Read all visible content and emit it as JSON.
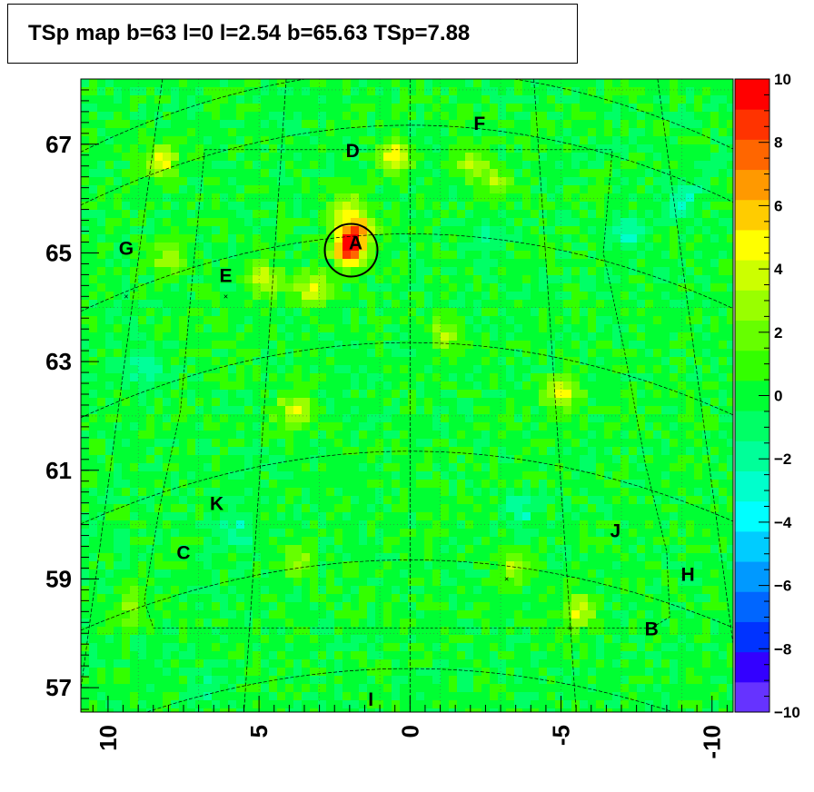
{
  "chart_data": {
    "type": "heatmap",
    "title": "TSp map b=63 l=0 l=2.54 b=65.63 TSp=7.88",
    "x_ticks": [
      "10",
      "5",
      "0",
      "-5",
      "-10"
    ],
    "x_tick_values": [
      10,
      5,
      0,
      -5,
      -10
    ],
    "xlim": [
      10.9,
      -10.7
    ],
    "y_ticks": [
      "67",
      "65",
      "63",
      "61",
      "59",
      "57"
    ],
    "y_tick_values": [
      67,
      65,
      63,
      61,
      59,
      57
    ],
    "ylim": [
      56.55,
      68.2
    ],
    "colorbar": {
      "ticks": [
        "10",
        "8",
        "6",
        "4",
        "2",
        "0",
        "−2",
        "−4",
        "−6",
        "−8",
        "−10"
      ],
      "range": [
        -10,
        10
      ],
      "colors": [
        "#6633ff",
        "#3300ff",
        "#0033ff",
        "#0066ff",
        "#0099ff",
        "#00ccff",
        "#00ffff",
        "#00ffcc",
        "#00ff99",
        "#00ff66",
        "#00ff33",
        "#33ff00",
        "#66ff00",
        "#99ff00",
        "#ccff00",
        "#ffff00",
        "#ffcc00",
        "#ff9900",
        "#ff6600",
        "#ff3300",
        "#ff0000"
      ]
    },
    "background_color": "#00ff33",
    "sources": [
      {
        "label": "A",
        "l": 1.8,
        "b": 65.2
      },
      {
        "label": "B",
        "l": -8.0,
        "b": 58.1
      },
      {
        "label": "C",
        "l": 7.5,
        "b": 59.5
      },
      {
        "label": "D",
        "l": 1.9,
        "b": 66.9
      },
      {
        "label": "E",
        "l": 6.1,
        "b": 64.6
      },
      {
        "label": "F",
        "l": -2.3,
        "b": 67.4
      },
      {
        "label": "G",
        "l": 9.4,
        "b": 65.1
      },
      {
        "label": "H",
        "l": -9.2,
        "b": 59.1
      },
      {
        "label": "I",
        "l": 1.3,
        "b": 56.8
      },
      {
        "label": "J",
        "l": -6.8,
        "b": 59.9
      },
      {
        "label": "K",
        "l": 6.4,
        "b": 60.4
      }
    ],
    "highlights": [
      {
        "l": 2.0,
        "b": 65.05,
        "v": 7.88
      },
      {
        "l": 1.8,
        "b": 65.4,
        "v": 6
      },
      {
        "l": 2.1,
        "b": 65.8,
        "v": 3.5
      },
      {
        "l": 3.2,
        "b": 64.3,
        "v": 4.5
      },
      {
        "l": 4.8,
        "b": 64.5,
        "v": 4.5
      },
      {
        "l": 8.2,
        "b": 66.7,
        "v": 4
      },
      {
        "l": 0.5,
        "b": 66.8,
        "v": 4.5
      },
      {
        "l": -2.0,
        "b": 66.7,
        "v": 3
      },
      {
        "l": -2.8,
        "b": 66.3,
        "v": 3
      },
      {
        "l": 3.8,
        "b": 62.1,
        "v": 4.5
      },
      {
        "l": -1.2,
        "b": 63.5,
        "v": 3
      },
      {
        "l": -5.0,
        "b": 62.4,
        "v": 4.5
      },
      {
        "l": -5.6,
        "b": 58.4,
        "v": 4
      },
      {
        "l": -3.4,
        "b": 59.2,
        "v": 3
      },
      {
        "l": 9.2,
        "b": 58.5,
        "v": 2.5
      },
      {
        "l": 3.8,
        "b": 59.3,
        "v": 2.5
      },
      {
        "l": 8.0,
        "b": 64.9,
        "v": 3
      },
      {
        "l": -7.2,
        "b": 65.3,
        "v": -2.5
      },
      {
        "l": -9.0,
        "b": 66.0,
        "v": -2.5
      },
      {
        "l": 8.8,
        "b": 62.9,
        "v": -2
      },
      {
        "l": 5.8,
        "b": 59.9,
        "v": -2.5
      },
      {
        "l": -3.8,
        "b": 60.3,
        "v": -2
      },
      {
        "l": 6.7,
        "b": 57.0,
        "v": -1.5
      },
      {
        "l": -2.5,
        "b": 65.2,
        "v": -1.5
      }
    ]
  }
}
